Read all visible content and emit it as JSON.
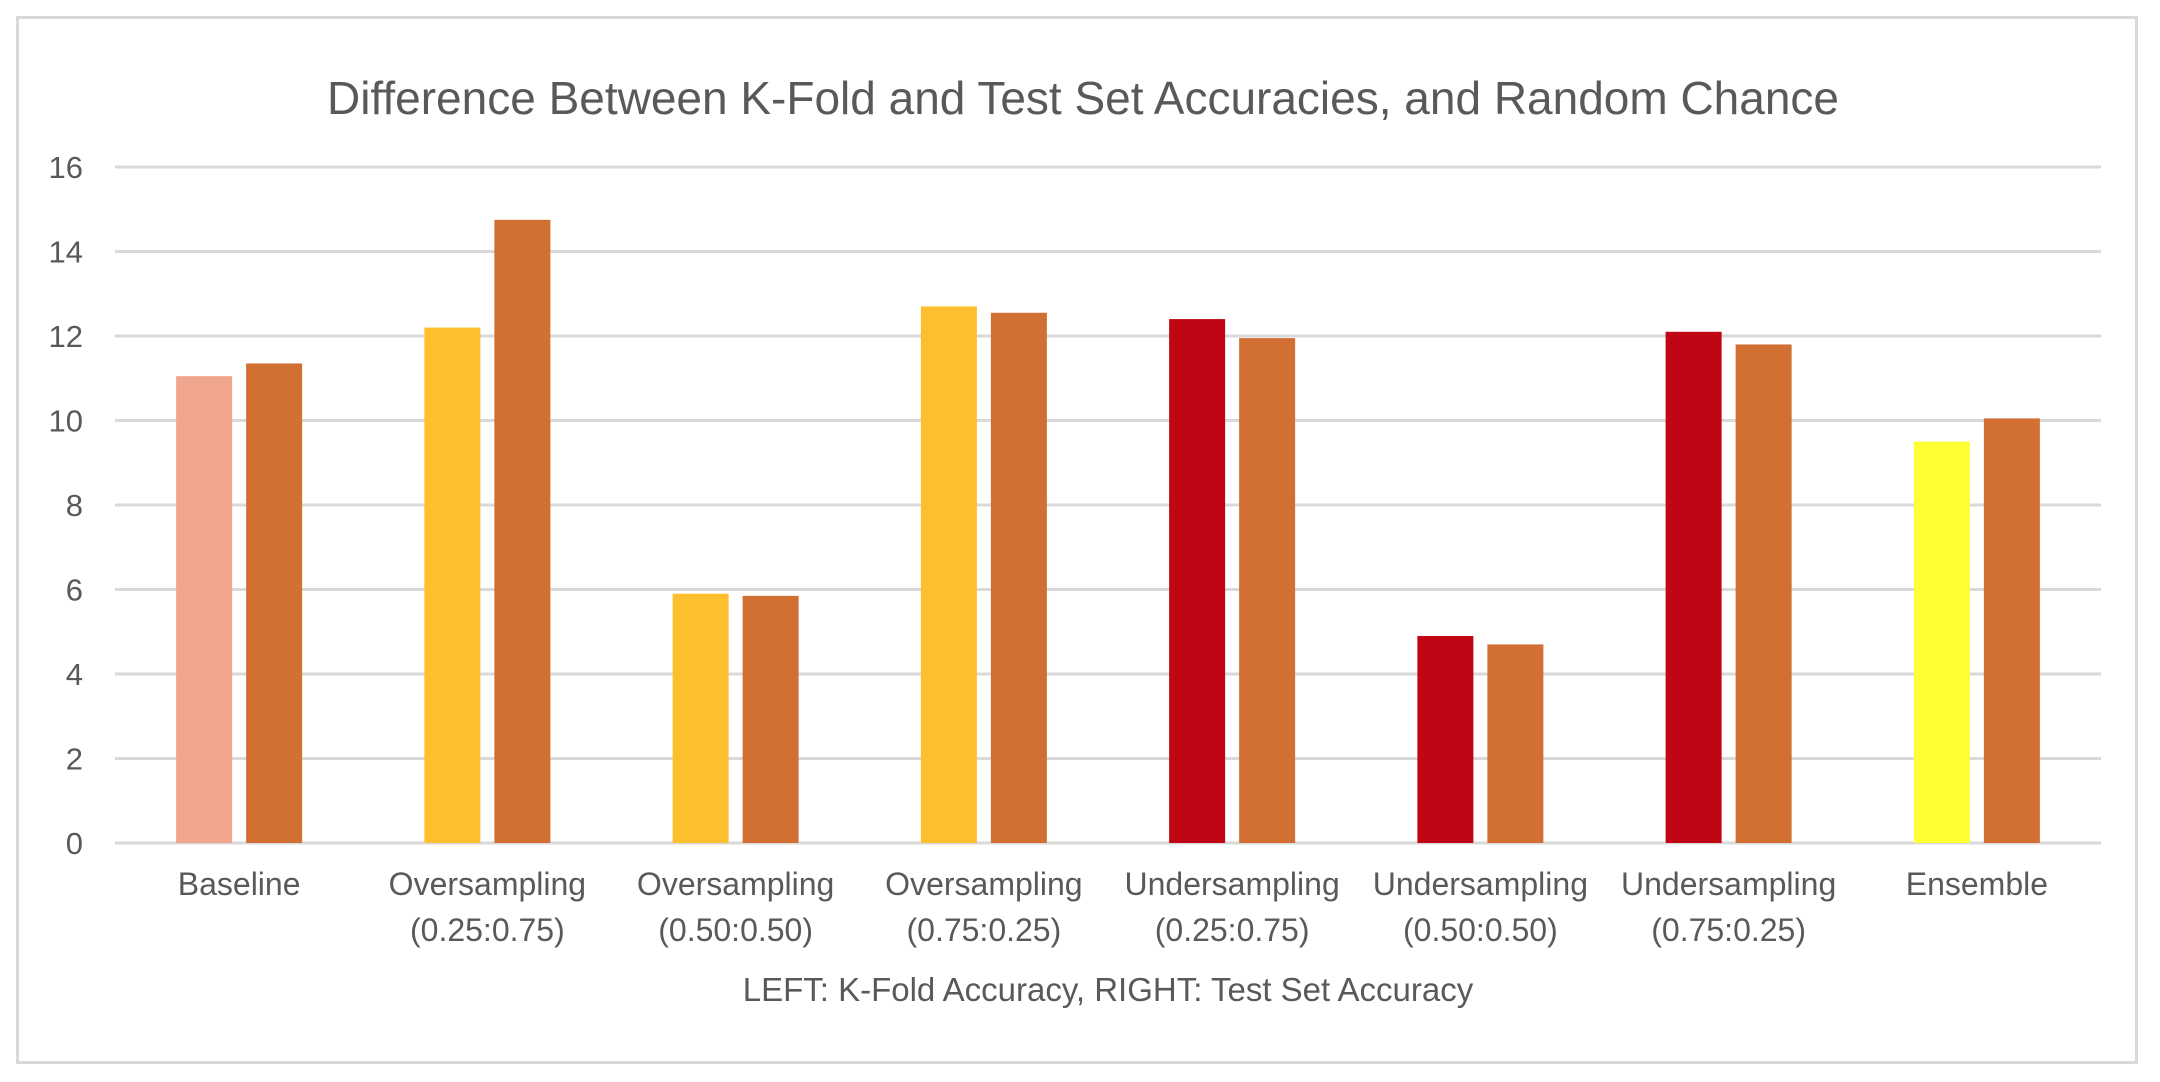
{
  "chart_data": {
    "type": "bar",
    "title": "Difference Between K-Fold and Test Set Accuracies, and Random Chance",
    "xlabel": "LEFT: K-Fold Accuracy, RIGHT: Test Set Accuracy",
    "ylabel": "",
    "ylim": [
      0,
      16
    ],
    "yticks": [
      0,
      2,
      4,
      6,
      8,
      10,
      12,
      14,
      16
    ],
    "grid": true,
    "legend": "none",
    "categories": [
      [
        "Baseline"
      ],
      [
        "Oversampling",
        "(0.25:0.75)"
      ],
      [
        "Oversampling",
        "(0.50:0.50)"
      ],
      [
        "Oversampling",
        "(0.75:0.25)"
      ],
      [
        "Undersampling",
        "(0.25:0.75)"
      ],
      [
        "Undersampling",
        "(0.50:0.50)"
      ],
      [
        "Undersampling",
        "(0.75:0.25)"
      ],
      [
        "Ensemble"
      ]
    ],
    "series": [
      {
        "values": [
          11.05,
          12.2,
          5.9,
          12.7,
          12.4,
          4.9,
          12.1,
          9.5
        ],
        "colors": [
          "#F0A58C",
          "#FDBF2D",
          "#FDBF2D",
          "#FDBF2D",
          "#C00614",
          "#C00614",
          "#C00614",
          "#FFFF33"
        ]
      },
      {
        "values": [
          11.35,
          14.75,
          5.85,
          12.55,
          11.95,
          4.7,
          11.8,
          10.05
        ],
        "colors": [
          "#D26F33",
          "#D26F33",
          "#D26F33",
          "#D26F33",
          "#D26F33",
          "#D26F33",
          "#D26F33",
          "#D26F33"
        ]
      }
    ]
  }
}
